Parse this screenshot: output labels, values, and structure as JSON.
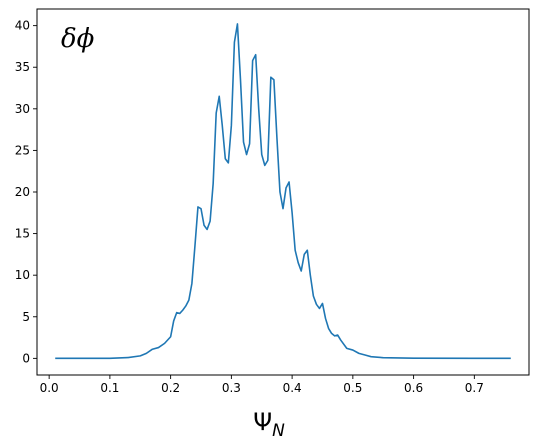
{
  "chart_data": {
    "type": "line",
    "title": "",
    "xlabel_main": "Ψ",
    "xlabel_sub": "N",
    "ylabel": "",
    "annotation": "δϕ",
    "xlim": [
      -0.02,
      0.79
    ],
    "ylim": [
      -2.0,
      42.0
    ],
    "xticks": [
      0.0,
      0.1,
      0.2,
      0.3,
      0.4,
      0.5,
      0.6,
      0.7
    ],
    "xtick_labels": [
      "0.0",
      "0.1",
      "0.2",
      "0.3",
      "0.4",
      "0.5",
      "0.6",
      "0.7"
    ],
    "yticks": [
      0,
      5,
      10,
      15,
      20,
      25,
      30,
      35,
      40
    ],
    "ytick_labels": [
      "0",
      "5",
      "10",
      "15",
      "20",
      "25",
      "30",
      "35",
      "40"
    ],
    "grid": false,
    "line_color": "#1f77b4",
    "series": [
      {
        "x": [
          0.01,
          0.05,
          0.1,
          0.13,
          0.15,
          0.16,
          0.17,
          0.18,
          0.19,
          0.2,
          0.205,
          0.21,
          0.215,
          0.22,
          0.225,
          0.23,
          0.235,
          0.24,
          0.245,
          0.25,
          0.255,
          0.26,
          0.265,
          0.27,
          0.275,
          0.28,
          0.285,
          0.29,
          0.295,
          0.3,
          0.305,
          0.31,
          0.315,
          0.32,
          0.325,
          0.33,
          0.335,
          0.34,
          0.345,
          0.35,
          0.355,
          0.36,
          0.365,
          0.37,
          0.375,
          0.38,
          0.385,
          0.39,
          0.395,
          0.4,
          0.405,
          0.41,
          0.415,
          0.42,
          0.425,
          0.43,
          0.435,
          0.44,
          0.445,
          0.45,
          0.455,
          0.46,
          0.465,
          0.47,
          0.475,
          0.48,
          0.49,
          0.5,
          0.51,
          0.52,
          0.53,
          0.55,
          0.6,
          0.7,
          0.76
        ],
        "y": [
          0,
          0,
          0,
          0.1,
          0.3,
          0.6,
          1.1,
          1.3,
          1.8,
          2.6,
          4.5,
          5.5,
          5.4,
          5.8,
          6.3,
          7.0,
          9.0,
          13.5,
          18.2,
          18.0,
          16.0,
          15.5,
          16.5,
          21.0,
          29.5,
          31.5,
          28.0,
          24.0,
          23.5,
          28.0,
          38.0,
          40.2,
          33.5,
          26.0,
          24.5,
          25.8,
          35.8,
          36.5,
          30.0,
          24.5,
          23.2,
          23.8,
          33.8,
          33.5,
          26.5,
          20.0,
          18.0,
          20.5,
          21.2,
          17.5,
          13.0,
          11.5,
          10.5,
          12.5,
          13.0,
          10.0,
          7.5,
          6.5,
          6.0,
          6.6,
          4.8,
          3.6,
          3.0,
          2.7,
          2.8,
          2.2,
          1.2,
          1.0,
          0.6,
          0.4,
          0.2,
          0.08,
          0.02,
          0,
          0
        ]
      }
    ]
  }
}
